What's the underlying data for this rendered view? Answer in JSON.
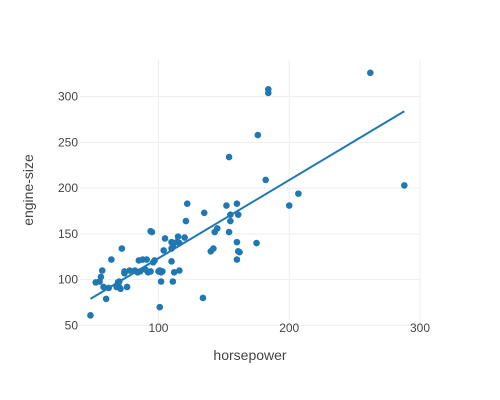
{
  "chart_data": {
    "type": "scatter",
    "title": "",
    "xlabel": "horsepower",
    "ylabel": "engine-size",
    "xlim": [
      40,
      300
    ],
    "ylim": [
      45,
      340
    ],
    "x_ticks": [
      100,
      200,
      300
    ],
    "y_ticks": [
      50,
      100,
      150,
      200,
      250,
      300
    ],
    "grid": true,
    "legend": "none",
    "colors": {
      "points": "#1f77b4",
      "trendline": "#1f77b4",
      "grid": "#eeeeee",
      "text": "#444444"
    },
    "series": [
      {
        "points": [
          [
            48,
            61
          ],
          [
            52,
            97
          ],
          [
            55,
            98
          ],
          [
            56,
            103
          ],
          [
            57,
            110
          ],
          [
            58,
            92
          ],
          [
            60,
            79
          ],
          [
            62,
            91
          ],
          [
            64,
            122
          ],
          [
            68,
            92
          ],
          [
            69,
            97
          ],
          [
            70,
            92
          ],
          [
            70,
            98
          ],
          [
            71,
            90
          ],
          [
            72,
            134
          ],
          [
            74,
            109
          ],
          [
            74,
            107
          ],
          [
            76,
            92
          ],
          [
            78,
            110
          ],
          [
            82,
            110
          ],
          [
            84,
            108
          ],
          [
            85,
            121
          ],
          [
            86,
            109
          ],
          [
            88,
            122
          ],
          [
            90,
            111
          ],
          [
            91,
            122
          ],
          [
            92,
            108
          ],
          [
            94,
            109
          ],
          [
            94,
            153
          ],
          [
            95,
            152
          ],
          [
            96,
            119
          ],
          [
            97,
            121
          ],
          [
            100,
            109
          ],
          [
            101,
            110
          ],
          [
            101,
            70
          ],
          [
            102,
            98
          ],
          [
            102,
            108
          ],
          [
            103,
            109
          ],
          [
            104,
            132
          ],
          [
            105,
            145
          ],
          [
            110,
            141
          ],
          [
            110,
            134
          ],
          [
            110,
            120
          ],
          [
            111,
            136
          ],
          [
            111,
            98
          ],
          [
            112,
            108
          ],
          [
            114,
            141
          ],
          [
            115,
            147
          ],
          [
            116,
            110
          ],
          [
            116,
            140
          ],
          [
            120,
            146
          ],
          [
            121,
            164
          ],
          [
            122,
            183
          ],
          [
            134,
            80
          ],
          [
            135,
            173
          ],
          [
            140,
            131
          ],
          [
            142,
            134
          ],
          [
            143,
            152
          ],
          [
            145,
            156
          ],
          [
            152,
            181
          ],
          [
            154,
            152
          ],
          [
            154,
            234
          ],
          [
            155,
            164
          ],
          [
            155,
            171
          ],
          [
            160,
            183
          ],
          [
            160,
            141
          ],
          [
            160,
            122
          ],
          [
            161,
            131
          ],
          [
            161,
            171
          ],
          [
            162,
            130
          ],
          [
            175,
            140
          ],
          [
            176,
            258
          ],
          [
            182,
            209
          ],
          [
            184,
            304
          ],
          [
            184,
            308
          ],
          [
            200,
            181
          ],
          [
            207,
            194
          ],
          [
            262,
            326
          ],
          [
            288,
            203
          ]
        ]
      }
    ],
    "trendline": {
      "x": [
        48,
        288
      ],
      "y": [
        79,
        284
      ]
    }
  }
}
